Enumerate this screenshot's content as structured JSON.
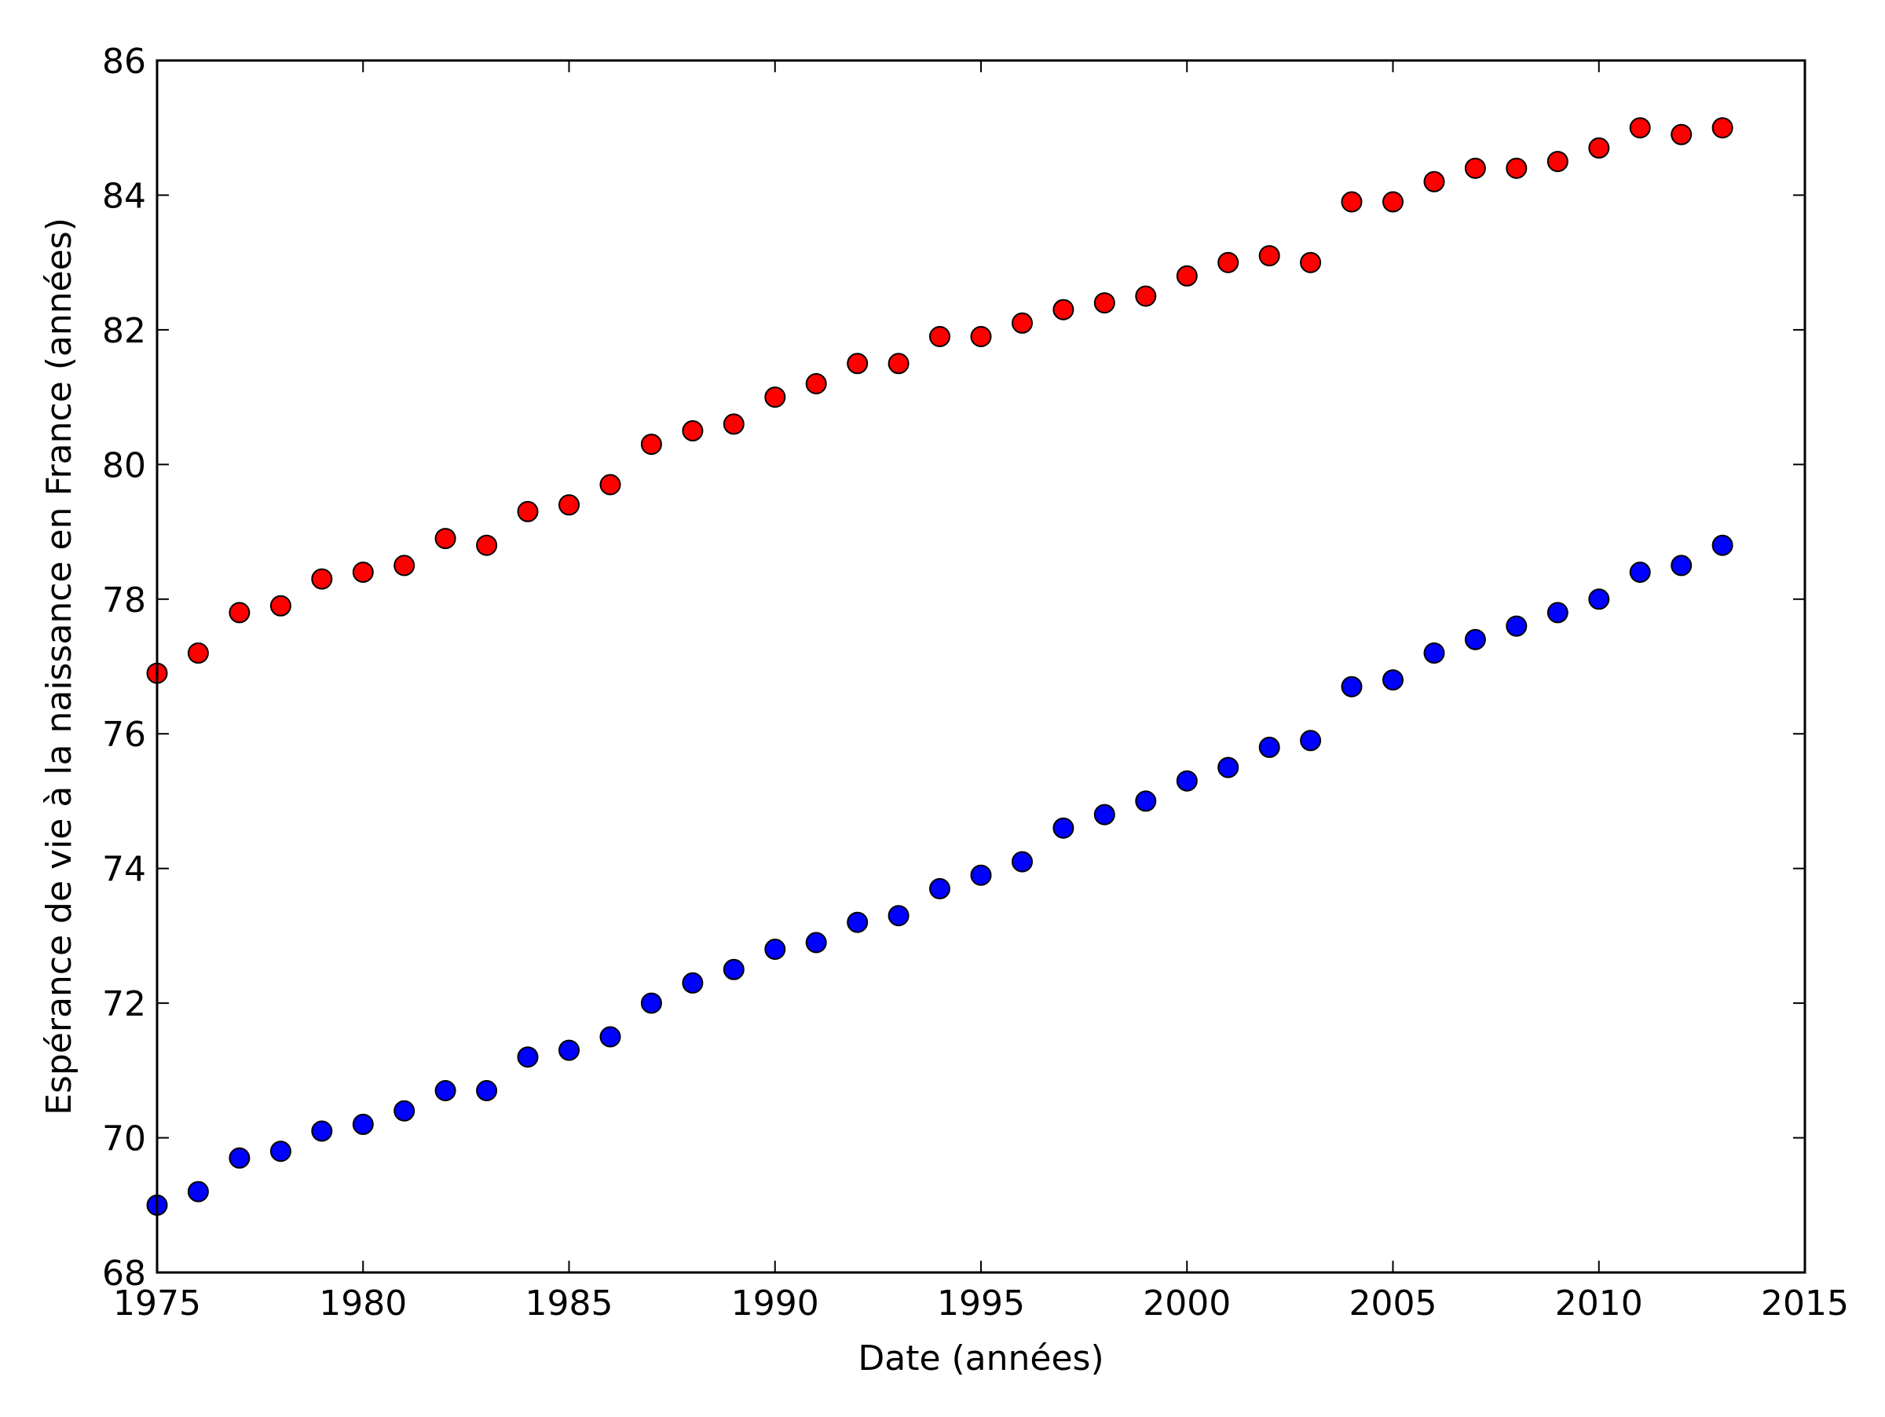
{
  "chart_data": {
    "type": "scatter",
    "title": "",
    "xlabel": "Date (années)",
    "ylabel": "Espérance de vie à la naissance en France (années)",
    "xlim": [
      1975,
      2015
    ],
    "ylim": [
      68,
      86
    ],
    "xticks": [
      1975,
      1980,
      1985,
      1990,
      1995,
      2000,
      2005,
      2010,
      2015
    ],
    "yticks": [
      68,
      70,
      72,
      74,
      76,
      78,
      80,
      82,
      84,
      86
    ],
    "grid": false,
    "legend": "none",
    "x": [
      1975,
      1976,
      1977,
      1978,
      1979,
      1980,
      1981,
      1982,
      1983,
      1984,
      1985,
      1986,
      1987,
      1988,
      1989,
      1990,
      1991,
      1992,
      1993,
      1994,
      1995,
      1996,
      1997,
      1998,
      1999,
      2000,
      2001,
      2002,
      2003,
      2004,
      2005,
      2006,
      2007,
      2008,
      2009,
      2010,
      2011,
      2012,
      2013
    ],
    "series": [
      {
        "color": "#ff0000",
        "values": [
          76.9,
          77.2,
          77.8,
          77.9,
          78.3,
          78.4,
          78.5,
          78.9,
          78.8,
          79.3,
          79.4,
          79.7,
          80.3,
          80.5,
          80.6,
          81.0,
          81.2,
          81.5,
          81.5,
          81.9,
          81.9,
          82.1,
          82.3,
          82.4,
          82.5,
          82.8,
          83.0,
          83.1,
          83.0,
          83.9,
          83.9,
          84.2,
          84.4,
          84.4,
          84.5,
          84.7,
          85.0,
          84.9,
          85.0
        ]
      },
      {
        "color": "#0000ff",
        "values": [
          69.0,
          69.2,
          69.7,
          69.8,
          70.1,
          70.2,
          70.4,
          70.7,
          70.7,
          71.2,
          71.3,
          71.5,
          72.0,
          72.3,
          72.5,
          72.8,
          72.9,
          73.2,
          73.3,
          73.7,
          73.9,
          74.1,
          74.6,
          74.8,
          75.0,
          75.3,
          75.5,
          75.8,
          75.9,
          76.7,
          76.8,
          77.2,
          77.4,
          77.6,
          77.8,
          78.0,
          78.4,
          78.5,
          78.8
        ]
      }
    ]
  }
}
